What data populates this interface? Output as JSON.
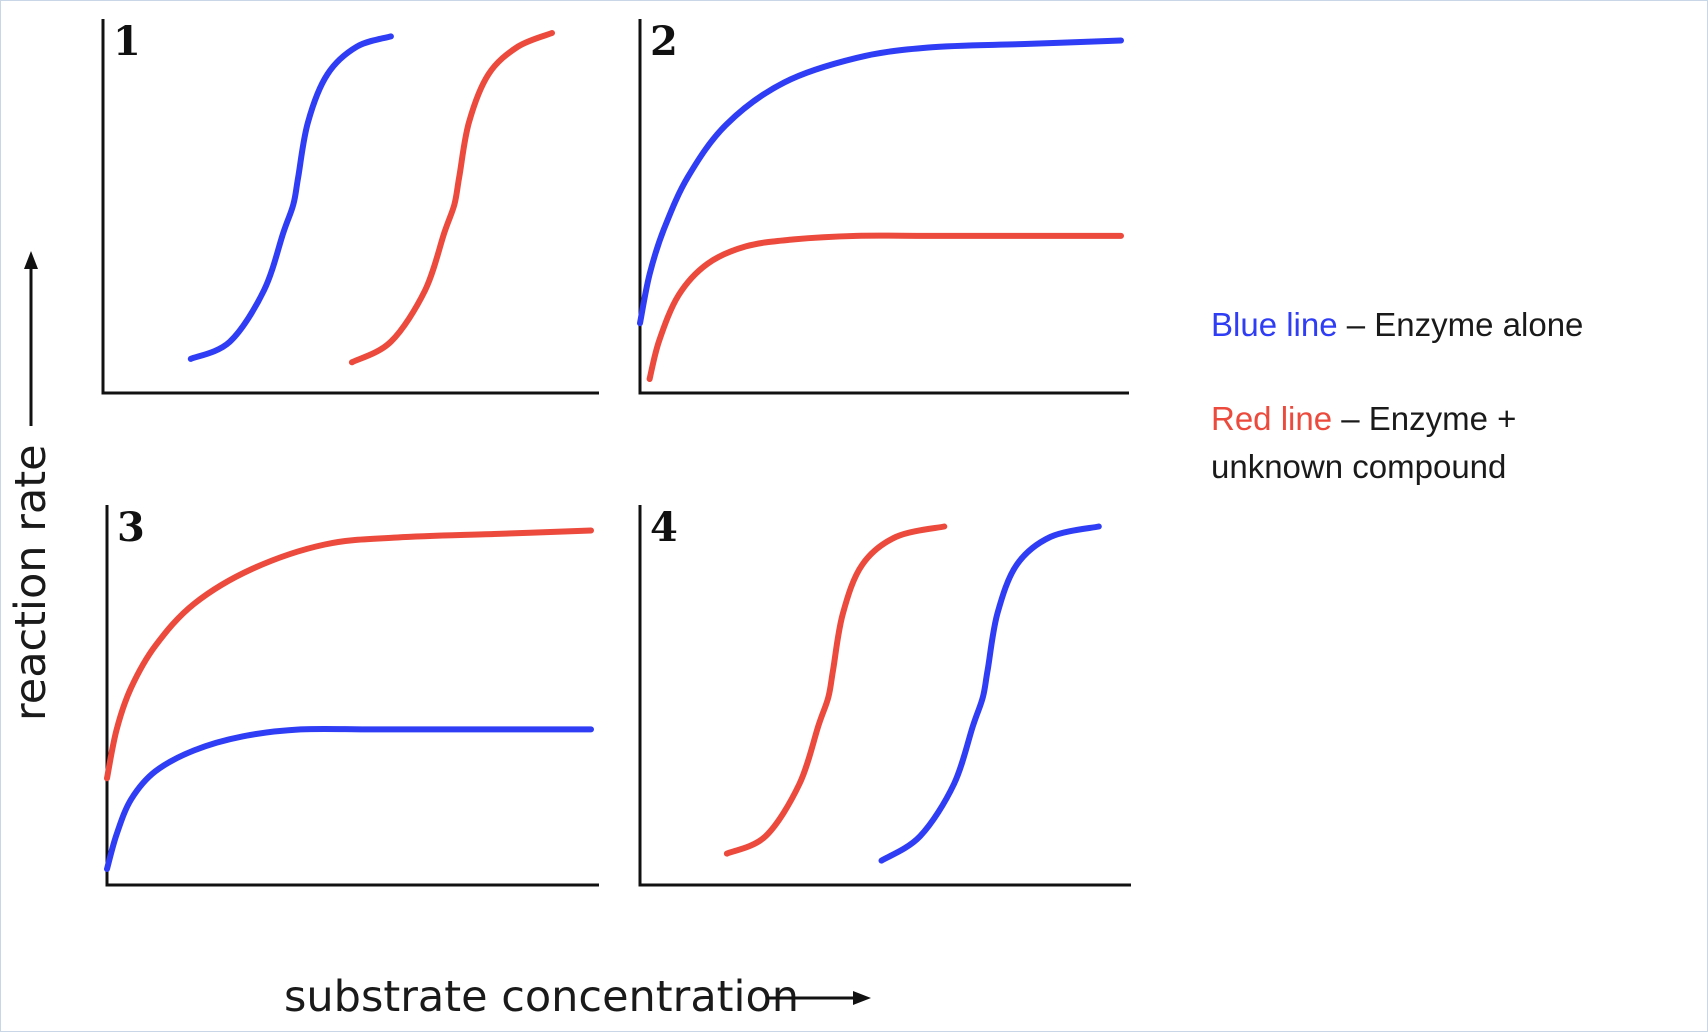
{
  "colors": {
    "blue": "#2f3df5",
    "red": "#ec4a3c",
    "axis": "#111111",
    "text": "#1a1a1a"
  },
  "chart_data": {
    "type": "line",
    "xlabel": "substrate concentration",
    "ylabel": "reaction rate",
    "grid": false,
    "legend_position": "right",
    "panels": [
      {
        "label": "1",
        "xlim": [
          0,
          1
        ],
        "ylim": [
          0,
          1
        ],
        "series": [
          {
            "color": "blue",
            "x": [
              0.18,
              0.26,
              0.33,
              0.37,
              0.39,
              0.4,
              0.42,
              0.46,
              0.52,
              0.59
            ],
            "y": [
              0.05,
              0.1,
              0.25,
              0.42,
              0.5,
              0.58,
              0.74,
              0.88,
              0.96,
              0.99
            ]
          },
          {
            "color": "red",
            "x": [
              0.51,
              0.59,
              0.66,
              0.7,
              0.72,
              0.73,
              0.75,
              0.79,
              0.85,
              0.92
            ],
            "y": [
              0.04,
              0.1,
              0.25,
              0.42,
              0.5,
              0.58,
              0.74,
              0.88,
              0.96,
              1.0
            ]
          }
        ]
      },
      {
        "label": "2",
        "xlim": [
          0,
          1
        ],
        "ylim": [
          0,
          1
        ],
        "series": [
          {
            "color": "blue",
            "x": [
              0.0,
              0.02,
              0.05,
              0.1,
              0.18,
              0.3,
              0.45,
              0.6,
              0.8,
              1.0
            ],
            "y": [
              0.18,
              0.32,
              0.45,
              0.6,
              0.75,
              0.87,
              0.94,
              0.97,
              0.98,
              0.99
            ]
          },
          {
            "color": "red",
            "x": [
              0.02,
              0.04,
              0.08,
              0.14,
              0.22,
              0.32,
              0.45,
              0.6,
              0.8,
              1.0
            ],
            "y": [
              0.02,
              0.13,
              0.26,
              0.35,
              0.4,
              0.42,
              0.43,
              0.43,
              0.43,
              0.43
            ]
          }
        ]
      },
      {
        "label": "3",
        "xlim": [
          0,
          1
        ],
        "ylim": [
          0,
          1
        ],
        "series": [
          {
            "color": "red",
            "x": [
              0.0,
              0.02,
              0.05,
              0.1,
              0.18,
              0.3,
              0.45,
              0.6,
              0.8,
              1.0
            ],
            "y": [
              0.28,
              0.42,
              0.54,
              0.66,
              0.78,
              0.88,
              0.95,
              0.97,
              0.98,
              0.99
            ]
          },
          {
            "color": "blue",
            "x": [
              0.0,
              0.02,
              0.05,
              0.1,
              0.18,
              0.28,
              0.4,
              0.55,
              0.75,
              1.0
            ],
            "y": [
              0.02,
              0.12,
              0.22,
              0.3,
              0.36,
              0.4,
              0.42,
              0.42,
              0.42,
              0.42
            ]
          }
        ]
      },
      {
        "label": "4",
        "xlim": [
          0,
          1
        ],
        "ylim": [
          0,
          1
        ],
        "series": [
          {
            "color": "red",
            "x": [
              0.18,
              0.26,
              0.33,
              0.37,
              0.39,
              0.4,
              0.42,
              0.46,
              0.53,
              0.63
            ],
            "y": [
              0.05,
              0.1,
              0.25,
              0.42,
              0.5,
              0.58,
              0.74,
              0.88,
              0.96,
              0.99
            ]
          },
          {
            "color": "blue",
            "x": [
              0.5,
              0.58,
              0.65,
              0.69,
              0.71,
              0.72,
              0.74,
              0.78,
              0.85,
              0.95
            ],
            "y": [
              0.03,
              0.1,
              0.25,
              0.42,
              0.5,
              0.58,
              0.74,
              0.88,
              0.96,
              0.99
            ]
          }
        ]
      }
    ]
  },
  "legend": {
    "blue_label": "Blue line",
    "blue_desc": " – Enzyme alone",
    "red_label": "Red line",
    "red_desc_line1": " – Enzyme +",
    "red_desc_line2": "unknown compound"
  }
}
